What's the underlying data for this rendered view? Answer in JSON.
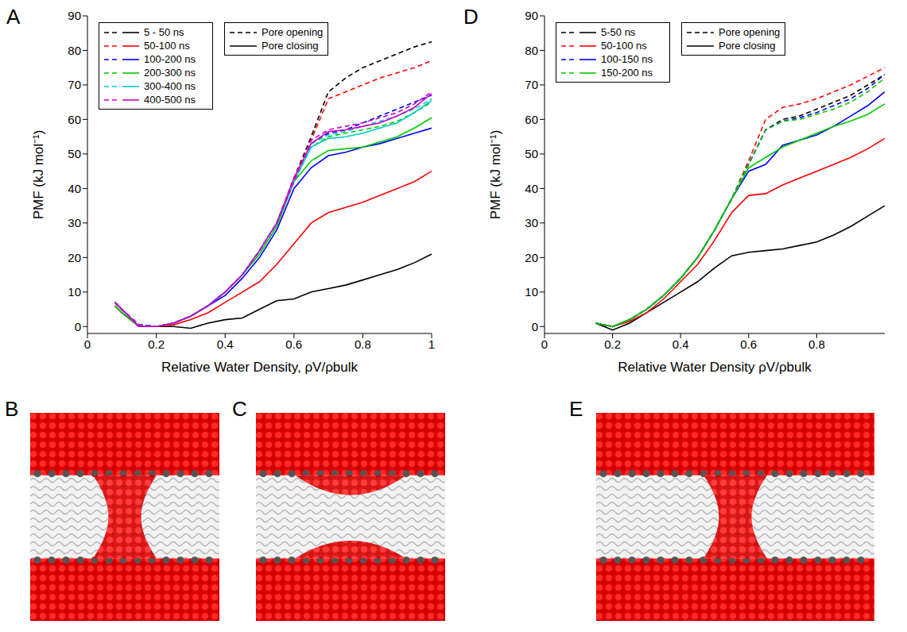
{
  "chart_data": [
    {
      "panel": "A",
      "type": "line",
      "x_label": "Relative Water Density, ρV/ρbulk",
      "y_label": "PMF (kJ mol⁻¹)",
      "xlim": [
        0,
        1
      ],
      "xticks": [
        0,
        0.2,
        0.4,
        0.6,
        0.8,
        1
      ],
      "ylim": [
        -2,
        90
      ],
      "yticks": [
        0,
        10,
        20,
        30,
        40,
        50,
        60,
        70,
        80,
        90
      ],
      "grid": false,
      "legend": "upper left",
      "curves": [
        {
          "name": "Pore opening",
          "line_style": "dashed"
        },
        {
          "name": "Pore closing",
          "line_style": "solid"
        }
      ],
      "x": [
        0.08,
        0.1,
        0.15,
        0.2,
        0.25,
        0.3,
        0.35,
        0.4,
        0.45,
        0.5,
        0.55,
        0.6,
        0.65,
        0.7,
        0.75,
        0.8,
        0.85,
        0.9,
        0.95,
        1.0
      ],
      "series": [
        {
          "name": "5 - 50 ns",
          "color": "#000000",
          "values": [
            [
              7,
              5,
              0.5,
              0,
              1,
              3,
              6,
              10,
              15,
              22,
              30,
              43,
              55,
              68,
              72,
              75,
              77,
              79,
              81,
              82.5
            ],
            [
              6,
              4,
              0,
              0,
              0,
              -0.5,
              1,
              2,
              2.5,
              5,
              7.5,
              8,
              10,
              11,
              12,
              13.5,
              15,
              16.5,
              18.5,
              21
            ]
          ]
        },
        {
          "name": "50-100 ns",
          "color": "#ff0000",
          "values": [
            [
              7,
              5,
              0.5,
              0,
              1,
              3,
              6,
              10,
              15,
              22,
              30,
              43,
              54,
              66,
              68,
              70,
              72,
              73.5,
              75,
              77
            ],
            [
              6,
              4,
              0,
              0,
              0.5,
              2,
              4,
              7,
              10,
              13,
              18,
              24,
              30,
              33,
              34.5,
              36,
              38,
              40,
              42,
              45
            ]
          ]
        },
        {
          "name": "100-200 ns",
          "color": "#0000ff",
          "values": [
            [
              7,
              5,
              0.5,
              0,
              1,
              3,
              6,
              10,
              15,
              22,
              30,
              42,
              53,
              56,
              57,
              59,
              61,
              63,
              65,
              67
            ],
            [
              7,
              5,
              0,
              0,
              1,
              3,
              6,
              9,
              14,
              20,
              28,
              40,
              46,
              49.5,
              50.5,
              52,
              53,
              54.5,
              56,
              57.5
            ]
          ]
        },
        {
          "name": "200-300 ns",
          "color": "#00cc00",
          "values": [
            [
              7,
              5,
              0.5,
              0,
              1,
              3,
              6,
              10,
              15,
              22,
              30,
              42,
              52,
              55,
              56,
              57,
              58,
              59.5,
              62,
              65
            ],
            [
              6,
              4,
              0,
              0,
              1,
              3,
              6,
              10,
              15,
              21,
              29,
              42,
              48,
              51,
              51.5,
              52,
              53.5,
              55,
              57.5,
              60.5
            ]
          ]
        },
        {
          "name": "300-400 ns",
          "color": "#00cccc",
          "values": [
            [
              7,
              5,
              0.5,
              0,
              1,
              3,
              6,
              10,
              15,
              22,
              30,
              42,
              53,
              55.5,
              56.5,
              58,
              59.5,
              61,
              63,
              66
            ],
            [
              7,
              5,
              0,
              0,
              1,
              3,
              6,
              10,
              15,
              22,
              30,
              42,
              52,
              54.5,
              55,
              56,
              57.5,
              59,
              62,
              65.5
            ]
          ]
        },
        {
          "name": "400-500 ns",
          "color": "#cc00cc",
          "values": [
            [
              7,
              5,
              0.5,
              0,
              1,
              3,
              6,
              10,
              15,
              22,
              30,
              42,
              54,
              57,
              58,
              59,
              60.5,
              62,
              64.5,
              68
            ],
            [
              7,
              5,
              0,
              0,
              1,
              3,
              6,
              10,
              15,
              22,
              30,
              43,
              53,
              56.5,
              57,
              58,
              59,
              61,
              63.5,
              67.5
            ]
          ]
        }
      ]
    },
    {
      "panel": "D",
      "type": "line",
      "x_label": "Relative Water Density ρV/ρbulk",
      "y_label": "PMF (kJ mol⁻¹)",
      "xlim": [
        0,
        1
      ],
      "xticks": [
        0,
        0.2,
        0.4,
        0.6,
        0.8
      ],
      "ylim": [
        -2,
        90
      ],
      "yticks": [
        0,
        10,
        20,
        30,
        40,
        50,
        60,
        70,
        80,
        90
      ],
      "grid": false,
      "legend": "upper left",
      "curves": [
        {
          "name": "Pore opening",
          "line_style": "dashed"
        },
        {
          "name": "Pore closing",
          "line_style": "solid"
        }
      ],
      "x": [
        0.15,
        0.2,
        0.25,
        0.3,
        0.35,
        0.4,
        0.45,
        0.5,
        0.55,
        0.6,
        0.65,
        0.7,
        0.75,
        0.8,
        0.85,
        0.9,
        0.95,
        1.0
      ],
      "series": [
        {
          "name": "5-50 ns",
          "color": "#000000",
          "values": [
            [
              1,
              0,
              2,
              5,
              9,
              14,
              20,
              28,
              37,
              47,
              57,
              60,
              61,
              63,
              65,
              67,
              70,
              73
            ],
            [
              1,
              -1,
              1,
              4,
              7,
              10,
              13,
              17,
              20.5,
              21.5,
              22,
              22.5,
              23.5,
              24.5,
              26.5,
              29,
              32,
              35
            ]
          ]
        },
        {
          "name": "50-100 ns",
          "color": "#ff0000",
          "values": [
            [
              1,
              0,
              2,
              5,
              9,
              14,
              20,
              28,
              37,
              48,
              60,
              63.5,
              64.5,
              66,
              68,
              70,
              72.5,
              75
            ],
            [
              1,
              0,
              1.5,
              4,
              8,
              13,
              18,
              25,
              33,
              38,
              38.5,
              41,
              43,
              45,
              47,
              49,
              51.5,
              54.5
            ]
          ]
        },
        {
          "name": "100-150 ns",
          "color": "#0000ff",
          "values": [
            [
              1,
              0,
              2,
              5,
              9,
              14,
              20,
              28,
              37,
              47,
              57,
              59.5,
              60.5,
              62,
              64,
              66,
              69,
              73
            ],
            [
              1,
              0,
              2,
              5,
              9,
              14,
              20,
              28,
              37,
              45,
              47,
              52.5,
              54,
              55.5,
              58,
              61,
              64,
              68
            ]
          ]
        },
        {
          "name": "150-200 ns",
          "color": "#00cc00",
          "values": [
            [
              1,
              0,
              2,
              5,
              9,
              14,
              20,
              28,
              37,
              47,
              57,
              59.5,
              60,
              61.5,
              63,
              65,
              68,
              72
            ],
            [
              1,
              0,
              2,
              5,
              9,
              14,
              20,
              28,
              37,
              46,
              49,
              52,
              54,
              56,
              58,
              59.5,
              61.5,
              64.5
            ]
          ]
        }
      ]
    }
  ],
  "images": [
    {
      "panel": "B"
    },
    {
      "panel": "C"
    },
    {
      "panel": "E"
    }
  ]
}
